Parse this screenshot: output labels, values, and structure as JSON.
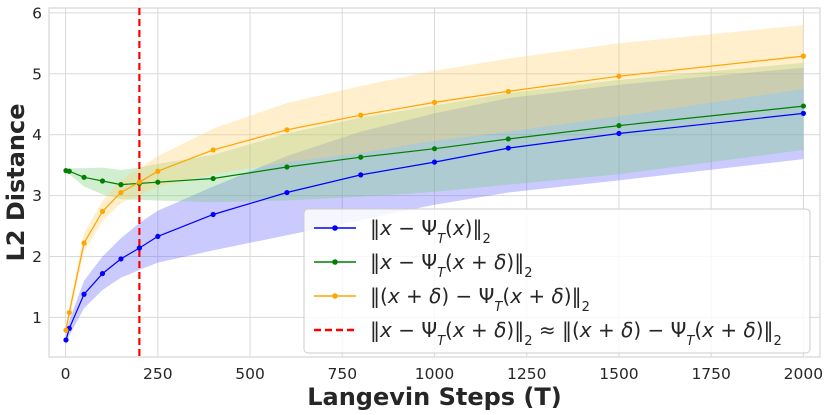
{
  "chart_data": {
    "type": "line",
    "title": "",
    "xlabel": "Langevin Steps (T)",
    "ylabel": "L2 Distance",
    "xlim": [
      -45,
      2045
    ],
    "ylim": [
      0.35,
      6.08
    ],
    "xticks": [
      0,
      250,
      500,
      750,
      1000,
      1250,
      1500,
      1750,
      2000
    ],
    "xtick_labels": [
      "0",
      "250",
      "500",
      "750",
      "1000",
      "1250",
      "1500",
      "1750",
      "2000"
    ],
    "yticks": [
      1,
      2,
      3,
      4,
      5,
      6
    ],
    "ytick_labels": [
      "1",
      "2",
      "3",
      "4",
      "5",
      "6"
    ],
    "grid": true,
    "legend_position": "lower-right",
    "x": [
      1,
      10,
      50,
      100,
      150,
      200,
      250,
      400,
      600,
      800,
      1000,
      1200,
      1500,
      2000
    ],
    "series": [
      {
        "name": "‖x − Ψ_T(x)‖₂",
        "legend_parts": [
          [
            "‖",
            ""
          ],
          [
            "x",
            "it"
          ],
          [
            " − Ψ",
            ""
          ],
          [
            "T",
            "sub"
          ],
          [
            "(",
            ""
          ],
          [
            "x",
            "it"
          ],
          [
            ")‖",
            ""
          ],
          [
            "2",
            "sub"
          ]
        ],
        "color": "#0000ff",
        "band_color": "#6666ff",
        "values": [
          0.63,
          0.82,
          1.38,
          1.72,
          1.96,
          2.14,
          2.33,
          2.69,
          3.05,
          3.34,
          3.55,
          3.78,
          4.02,
          4.35
        ],
        "lower": [
          0.55,
          0.7,
          1.15,
          1.45,
          1.65,
          1.78,
          1.9,
          2.1,
          2.35,
          2.6,
          2.85,
          3.05,
          3.25,
          3.6
        ],
        "upper": [
          0.75,
          0.95,
          1.6,
          2.0,
          2.3,
          2.55,
          2.75,
          3.15,
          3.65,
          4.05,
          4.35,
          4.6,
          4.82,
          5.1
        ]
      },
      {
        "name": "‖x − Ψ_T(x + δ)‖₂",
        "legend_parts": [
          [
            "‖",
            ""
          ],
          [
            "x",
            "it"
          ],
          [
            " − Ψ",
            ""
          ],
          [
            "T",
            "sub"
          ],
          [
            "(",
            ""
          ],
          [
            "x",
            "it"
          ],
          [
            " + ",
            ""
          ],
          [
            "δ",
            "it"
          ],
          [
            ")‖",
            ""
          ],
          [
            "2",
            "sub"
          ]
        ],
        "color": "#008000",
        "band_color": "#7ccf7c",
        "values": [
          3.41,
          3.4,
          3.3,
          3.24,
          3.18,
          3.2,
          3.22,
          3.28,
          3.47,
          3.63,
          3.77,
          3.93,
          4.15,
          4.47
        ],
        "lower": [
          3.38,
          3.35,
          3.15,
          3.02,
          2.94,
          2.93,
          2.92,
          2.89,
          2.92,
          2.98,
          3.06,
          3.18,
          3.35,
          3.75
        ],
        "upper": [
          3.44,
          3.45,
          3.45,
          3.46,
          3.42,
          3.46,
          3.52,
          3.67,
          4.02,
          4.28,
          4.48,
          4.68,
          4.9,
          5.18
        ]
      },
      {
        "name": "‖(x + δ) − Ψ_T(x + δ)‖₂",
        "legend_parts": [
          [
            "‖(",
            ""
          ],
          [
            "x",
            "it"
          ],
          [
            " + ",
            ""
          ],
          [
            "δ",
            "it"
          ],
          [
            ") − Ψ",
            ""
          ],
          [
            "T",
            "sub"
          ],
          [
            "(",
            ""
          ],
          [
            "x",
            "it"
          ],
          [
            " + ",
            ""
          ],
          [
            "δ",
            "it"
          ],
          [
            ")‖",
            ""
          ],
          [
            "2",
            "sub"
          ]
        ],
        "color": "#ffa500",
        "band_color": "#ffd070",
        "values": [
          0.79,
          1.08,
          2.22,
          2.74,
          3.05,
          3.22,
          3.4,
          3.75,
          4.08,
          4.32,
          4.53,
          4.71,
          4.96,
          5.29
        ],
        "lower": [
          0.72,
          0.98,
          2.08,
          2.58,
          2.88,
          3.0,
          3.15,
          3.35,
          3.55,
          3.7,
          3.9,
          4.05,
          4.3,
          4.75
        ],
        "upper": [
          0.86,
          1.18,
          2.38,
          2.92,
          3.25,
          3.45,
          3.65,
          4.1,
          4.52,
          4.8,
          5.05,
          5.25,
          5.5,
          5.8
        ]
      }
    ],
    "vline": {
      "x": 200,
      "color": "#ff0000",
      "name": "‖x − Ψ_T(x + δ)‖₂ ≈ ‖(x + δ) − Ψ_T(x + δ)‖₂",
      "legend_parts": [
        [
          "‖",
          ""
        ],
        [
          "x",
          "it"
        ],
        [
          " − Ψ",
          ""
        ],
        [
          "T",
          "sub"
        ],
        [
          "(",
          ""
        ],
        [
          "x",
          "it"
        ],
        [
          " + ",
          ""
        ],
        [
          "δ",
          "it"
        ],
        [
          ")‖",
          ""
        ],
        [
          "2",
          "sub"
        ],
        [
          "  ≈  ‖(",
          ""
        ],
        [
          "x",
          "it"
        ],
        [
          " + ",
          ""
        ],
        [
          "δ",
          "it"
        ],
        [
          ") − Ψ",
          ""
        ],
        [
          "T",
          "sub"
        ],
        [
          "(",
          ""
        ],
        [
          "x",
          "it"
        ],
        [
          " + ",
          ""
        ],
        [
          "δ",
          "it"
        ],
        [
          ")‖",
          ""
        ],
        [
          "2",
          "sub"
        ]
      ]
    },
    "colors": {
      "grid": "#d9d9d9",
      "axes_edge": "#cccccc",
      "text": "#262626",
      "legend_edge": "#cccccc"
    }
  }
}
